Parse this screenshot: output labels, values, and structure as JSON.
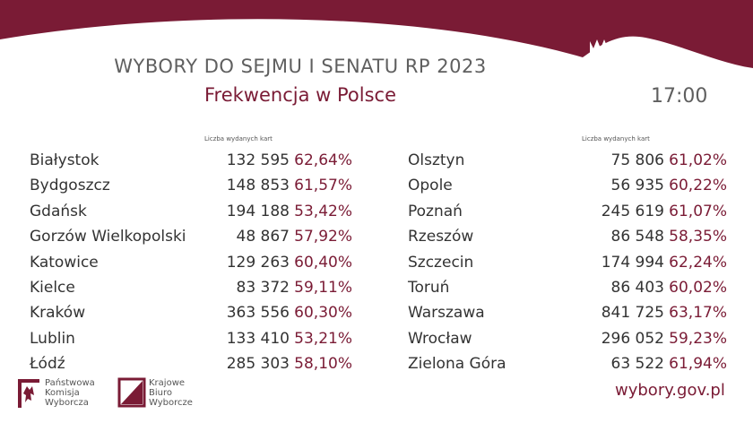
{
  "header": {
    "title": "WYBORY DO SEJMU I SENATU RP 2023",
    "subtitle": "Frekwencja w Polsce",
    "time": "17:00"
  },
  "columns": {
    "count_header_left": "Liczba wydanych kart",
    "count_header_right": "Liczba wydanych kart"
  },
  "left_rows": [
    {
      "city": "Białystok",
      "count": "132 595",
      "pct": "62,64%"
    },
    {
      "city": "Bydgoszcz",
      "count": "148 853",
      "pct": "61,57%"
    },
    {
      "city": "Gdańsk",
      "count": "194 188",
      "pct": "53,42%"
    },
    {
      "city": "Gorzów Wielkopolski",
      "count": "48 867",
      "pct": "57,92%"
    },
    {
      "city": "Katowice",
      "count": "129 263",
      "pct": "60,40%"
    },
    {
      "city": "Kielce",
      "count": "83 372",
      "pct": "59,11%"
    },
    {
      "city": "Kraków",
      "count": "363 556",
      "pct": "60,30%"
    },
    {
      "city": "Lublin",
      "count": "133 410",
      "pct": "53,21%"
    },
    {
      "city": "Łódź",
      "count": "285 303",
      "pct": "58,10%"
    }
  ],
  "right_rows": [
    {
      "city": "Olsztyn",
      "count": "75 806",
      "pct": "61,02%"
    },
    {
      "city": "Opole",
      "count": "56 935",
      "pct": "60,22%"
    },
    {
      "city": "Poznań",
      "count": "245 619",
      "pct": "61,07%"
    },
    {
      "city": "Rzeszów",
      "count": "86 548",
      "pct": "58,35%"
    },
    {
      "city": "Szczecin",
      "count": "174 994",
      "pct": "62,24%"
    },
    {
      "city": "Toruń",
      "count": "86 403",
      "pct": "60,02%"
    },
    {
      "city": "Warszawa",
      "count": "841 725",
      "pct": "63,17%"
    },
    {
      "city": "Wrocław",
      "count": "296 052",
      "pct": "59,23%"
    },
    {
      "city": "Zielona Góra",
      "count": "63 522",
      "pct": "61,94%"
    }
  ],
  "footer": {
    "logo1_text": "Państwowa\nKomisja\nWyborcza",
    "logo2_text": "Krajowe\nBiuro\nWyborcze",
    "website": "wybory.gov.pl"
  },
  "colors": {
    "accent": "#7a1b35",
    "text": "#333333",
    "title_gray": "#5f5f5f"
  },
  "icons": [
    "eagle-emblem-icon",
    "pkw-logo-icon",
    "kbw-logo-icon"
  ]
}
